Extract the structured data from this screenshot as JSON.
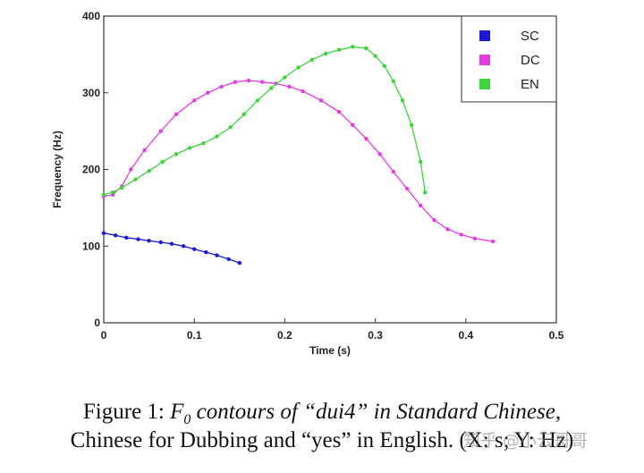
{
  "chart_data": {
    "type": "line",
    "xlabel": "Time (s)",
    "ylabel": "Frequency (Hz)",
    "xlim": [
      0,
      0.5
    ],
    "ylim": [
      0,
      400
    ],
    "xticks": [
      "0",
      "0.1",
      "0.2",
      "0.3",
      "0.4",
      "0.5"
    ],
    "yticks": [
      "0",
      "100",
      "200",
      "300",
      "400"
    ],
    "grid": false,
    "legend_position": "top-right",
    "series": [
      {
        "name": "SC",
        "color": "#1a1ad6",
        "x": [
          0,
          0.013,
          0.025,
          0.038,
          0.05,
          0.063,
          0.075,
          0.088,
          0.1,
          0.113,
          0.125,
          0.138,
          0.15
        ],
        "y": [
          117,
          114,
          111,
          109,
          107,
          105,
          103,
          100,
          96,
          92,
          88,
          83,
          78
        ]
      },
      {
        "name": "DC",
        "color": "#e23ce2",
        "x": [
          0,
          0.01,
          0.02,
          0.03,
          0.045,
          0.063,
          0.08,
          0.1,
          0.115,
          0.13,
          0.145,
          0.16,
          0.175,
          0.19,
          0.205,
          0.22,
          0.24,
          0.26,
          0.275,
          0.29,
          0.305,
          0.32,
          0.335,
          0.35,
          0.365,
          0.38,
          0.395,
          0.41,
          0.43
        ],
        "y": [
          165,
          167,
          178,
          200,
          225,
          250,
          272,
          290,
          300,
          308,
          314,
          316,
          314,
          312,
          308,
          302,
          290,
          275,
          258,
          240,
          220,
          197,
          175,
          153,
          134,
          122,
          115,
          110,
          106
        ]
      },
      {
        "name": "EN",
        "color": "#3cd63c",
        "x": [
          0,
          0.01,
          0.02,
          0.035,
          0.05,
          0.065,
          0.08,
          0.095,
          0.11,
          0.125,
          0.14,
          0.155,
          0.17,
          0.185,
          0.2,
          0.215,
          0.23,
          0.245,
          0.26,
          0.275,
          0.29,
          0.3,
          0.31,
          0.32,
          0.33,
          0.34,
          0.35,
          0.355
        ],
        "y": [
          167,
          170,
          176,
          187,
          198,
          210,
          220,
          228,
          234,
          243,
          255,
          272,
          290,
          306,
          320,
          333,
          343,
          351,
          356,
          360,
          358,
          348,
          335,
          315,
          290,
          258,
          210,
          170
        ]
      }
    ]
  },
  "caption": {
    "line1_prefix": "Figure 1: ",
    "line1_rest": " contours of “dui4” in Standard Chinese,",
    "f0_symbol": "F",
    "f0_sub": "0",
    "line2": "Chinese for Dubbing and “yes” in English. (X: s; Y: Hz)"
  },
  "watermark": "知乎 @小云哥哥"
}
